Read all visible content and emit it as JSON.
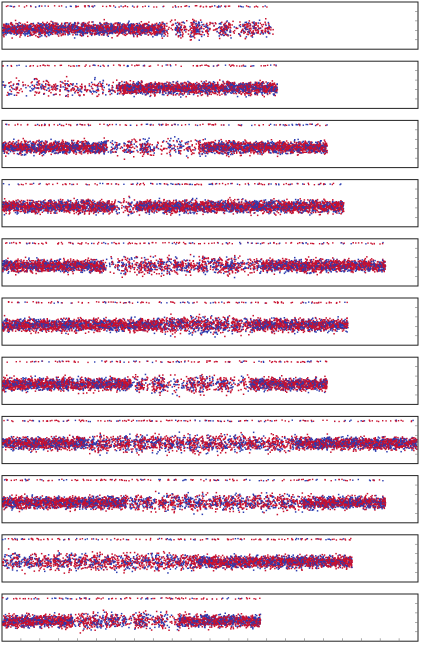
{
  "figure": {
    "background": "#ffffff",
    "frame_color": "#222222",
    "tick_color": "#777777"
  },
  "chart_data": [
    {
      "type": "scatter",
      "panel": 1,
      "extent_fraction": 0.65,
      "profile": [
        1,
        1,
        1,
        1,
        1,
        1,
        1,
        1,
        1,
        1,
        1,
        1,
        1,
        1,
        1,
        1,
        1,
        1,
        1,
        1,
        1,
        1,
        1,
        1,
        1,
        1,
        1,
        1,
        1,
        1,
        1,
        1,
        1,
        1,
        1,
        1,
        1,
        1,
        1,
        0.2,
        0.1,
        0.3,
        0.6,
        0.3,
        0.1,
        0.7,
        0.8,
        0.5,
        0.2,
        0.3,
        0.1,
        0.2,
        0.6,
        0.8,
        0.4,
        0.1,
        0.1,
        0.3,
        0.5,
        0.4,
        0.6,
        0.3,
        0.2,
        0.5,
        0.2
      ],
      "colors": [
        "#c8102e",
        "#2a3bb0"
      ],
      "series": []
    },
    {
      "type": "scatter",
      "panel": 2,
      "extent_fraction": 0.66,
      "profile": [
        0.1,
        0.2,
        0.15,
        0.3,
        0.1,
        0.05,
        0.1,
        0.2,
        0.35,
        0.3,
        0.2,
        0.25,
        0.3,
        0.2,
        0.1,
        0.4,
        0.2,
        0.15,
        0.3,
        0.2,
        0.1,
        0.2,
        0.3,
        0.2,
        0.2,
        0.15,
        0.2,
        0.3,
        1,
        1,
        1,
        1,
        1,
        1,
        1,
        1,
        1,
        1,
        1,
        1,
        1,
        1,
        1,
        1,
        1,
        1,
        1,
        1,
        1,
        1,
        1,
        1,
        1,
        1,
        1,
        1,
        1,
        1,
        1,
        1,
        1,
        1,
        1,
        1,
        1,
        1
      ],
      "colors": [
        "#c8102e",
        "#2a3bb0"
      ],
      "series": []
    },
    {
      "type": "scatter",
      "panel": 3,
      "extent_fraction": 0.78,
      "profile": [
        1,
        1,
        1,
        1,
        1,
        1,
        1,
        1,
        1,
        1,
        1,
        1,
        1,
        1,
        1,
        1,
        1,
        1,
        1,
        1,
        1,
        1,
        1,
        1,
        1,
        0.1,
        0.2,
        0.3,
        0.1,
        0.3,
        0.5,
        0.2,
        0.1,
        0.6,
        0.7,
        0.3,
        0.2,
        0.1,
        0.2,
        0.1,
        0.3,
        0.2,
        0.4,
        0.1,
        0.3,
        0.2,
        0.1,
        0.6,
        0.8,
        1,
        1,
        1,
        1,
        1,
        1,
        1,
        1,
        1,
        1,
        1,
        1,
        1,
        1,
        1,
        1,
        1,
        1,
        1,
        1,
        1,
        1,
        1,
        1,
        1,
        1,
        1,
        1,
        1
      ],
      "colors": [
        "#c8102e",
        "#2a3bb0"
      ],
      "series": []
    },
    {
      "type": "scatter",
      "panel": 4,
      "extent_fraction": 0.82,
      "profile": [
        1,
        1,
        1,
        1,
        1,
        1,
        1,
        1,
        1,
        1,
        1,
        1,
        1,
        1,
        1,
        1,
        1,
        1,
        1,
        1,
        0.8,
        1,
        1,
        1,
        1,
        1,
        1,
        0.2,
        0.1,
        0.3,
        0.5,
        0.2,
        1,
        1,
        1,
        1,
        1,
        1,
        1,
        1,
        1,
        1,
        1,
        1,
        1,
        0.8,
        1,
        1,
        1,
        1,
        1,
        1,
        1,
        1,
        1,
        1,
        1,
        1,
        1,
        1,
        1,
        1,
        1,
        1,
        1,
        1,
        1,
        1,
        1,
        1,
        1,
        1,
        1,
        1,
        1,
        1,
        1,
        1,
        1,
        1,
        1,
        1
      ],
      "colors": [
        "#c8102e",
        "#2a3bb0"
      ],
      "series": []
    },
    {
      "type": "scatter",
      "panel": 5,
      "extent_fraction": 0.92,
      "profile": [
        1,
        1,
        1,
        1,
        1,
        1,
        1,
        1,
        1,
        1,
        1,
        1,
        1,
        1,
        1,
        1,
        1,
        1,
        1,
        1,
        1,
        1,
        1,
        1,
        0.1,
        0.2,
        0.1,
        0.3,
        0.5,
        0.4,
        0.2,
        0.3,
        0.6,
        0.5,
        0.7,
        0.4,
        0.3,
        0.6,
        0.4,
        0.3,
        0.6,
        0.5,
        0.4,
        0.6,
        0.4,
        0.3,
        0.5,
        0.6,
        0.3,
        0.4,
        0.6,
        0.5,
        0.7,
        0.8,
        0.6,
        0.4,
        0.3,
        0.2,
        0.3,
        0.5,
        0.4,
        1,
        1,
        1,
        1,
        1,
        1,
        1,
        1,
        1,
        1,
        1,
        1,
        1,
        1,
        1,
        1,
        1,
        1,
        1,
        1,
        1,
        1,
        1,
        1,
        1,
        1,
        1,
        1,
        1
      ],
      "colors": [
        "#c8102e",
        "#2a3bb0"
      ],
      "series": []
    },
    {
      "type": "scatter",
      "panel": 6,
      "extent_fraction": 0.83,
      "profile": [
        1,
        1,
        1,
        1,
        1,
        1,
        1,
        1,
        1,
        1,
        1,
        1,
        1,
        1,
        1,
        1,
        1,
        1,
        1,
        1,
        1,
        1,
        1,
        1,
        1,
        1,
        1,
        1,
        1,
        1,
        1,
        1,
        1,
        1,
        1,
        1,
        1,
        0.7,
        0.6,
        0.8,
        0.5,
        0.9,
        0.7,
        0.6,
        0.8,
        0.7,
        0.6,
        0.9,
        0.7,
        0.5,
        0.8,
        0.6,
        0.7,
        0.4,
        0.8,
        0.6,
        0.3,
        0.5,
        0.7,
        1,
        1,
        1,
        1,
        1,
        1,
        1,
        1,
        1,
        1,
        1,
        1,
        1,
        1,
        1,
        1,
        1,
        1,
        1,
        1,
        1,
        1
      ],
      "colors": [
        "#c8102e",
        "#2a3bb0"
      ],
      "series": []
    },
    {
      "type": "scatter",
      "panel": 7,
      "extent_fraction": 0.78,
      "profile": [
        1,
        1,
        1,
        1,
        1,
        1,
        1,
        1,
        1,
        1,
        1,
        1,
        1,
        1,
        1,
        1,
        1,
        1,
        1,
        1,
        1,
        1,
        1,
        1,
        1,
        1,
        1,
        1,
        1,
        1,
        0.2,
        0.5,
        0.6,
        0.3,
        0.1,
        0.5,
        0.7,
        0.6,
        0.2,
        0.1,
        0.3,
        0.1,
        0.2,
        0.5,
        0.6,
        0.4,
        0.7,
        0.5,
        0.3,
        0.2,
        0.4,
        0.6,
        0.5,
        0.3,
        0.1,
        0.2,
        0.3,
        0.2,
        1,
        1,
        1,
        1,
        1,
        1,
        1,
        1,
        1,
        1,
        1,
        1,
        1,
        1,
        1,
        1,
        1,
        1
      ],
      "colors": [
        "#c8102e",
        "#2a3bb0"
      ],
      "series": []
    },
    {
      "type": "scatter",
      "panel": 8,
      "extent_fraction": 0.995,
      "profile": [
        1,
        1,
        1,
        1,
        1,
        1,
        1,
        1,
        1,
        1,
        1,
        1,
        1,
        1,
        1,
        1,
        1,
        1,
        1,
        1,
        0.4,
        0.7,
        0.3,
        0.8,
        0.6,
        0.5,
        0.3,
        0.4,
        0.6,
        0.7,
        0.5,
        0.3,
        0.6,
        0.8,
        0.5,
        0.4,
        0.7,
        0.6,
        0.3,
        0.5,
        0.7,
        0.4,
        0.6,
        0.5,
        0.3,
        0.7,
        0.6,
        0.4,
        0.5,
        0.8,
        0.6,
        0.4,
        0.6,
        0.5,
        0.3,
        0.4,
        0.5,
        0.7,
        0.4,
        0.6,
        0.5,
        0.6,
        0.3,
        0.4,
        0.5,
        0.6,
        0.5,
        0.4,
        0.3,
        0.5,
        0.6,
        1,
        1,
        1,
        1,
        1,
        1,
        1,
        1,
        1,
        1,
        1,
        1,
        1,
        1,
        1,
        1,
        1,
        1,
        1,
        1,
        1,
        1,
        1,
        1,
        1,
        1,
        1,
        1,
        1
      ],
      "colors": [
        "#c8102e",
        "#2a3bb0"
      ],
      "series": []
    },
    {
      "type": "scatter",
      "panel": 9,
      "extent_fraction": 0.92,
      "profile": [
        1,
        1,
        1,
        1,
        1,
        1,
        1,
        1,
        1,
        1,
        1,
        1,
        1,
        1,
        1,
        1,
        1,
        1,
        1,
        1,
        1,
        1,
        1,
        1,
        1,
        1,
        1,
        1,
        1,
        1,
        0.2,
        0.4,
        0.6,
        0.3,
        0.5,
        0.7,
        0.4,
        0.2,
        0.6,
        0.5,
        0.3,
        0.6,
        0.4,
        0.3,
        0.5,
        0.7,
        0.4,
        0.6,
        0.5,
        0.3,
        0.4,
        0.6,
        0.5,
        0.4,
        0.7,
        0.5,
        0.4,
        0.6,
        0.3,
        0.5,
        0.4,
        0.6,
        0.5,
        0.4,
        0.6,
        0.4,
        0.3,
        0.5,
        0.6,
        0.4,
        0.5,
        0.3,
        0.4,
        1,
        1,
        1,
        1,
        1,
        1,
        1,
        1,
        1,
        1,
        1,
        1,
        1,
        1,
        1,
        1,
        1,
        1,
        1,
        1
      ],
      "colors": [
        "#c8102e",
        "#2a3bb0"
      ],
      "series": []
    },
    {
      "type": "scatter",
      "panel": 10,
      "extent_fraction": 0.84,
      "profile": [
        0.4,
        0.3,
        0.5,
        0.6,
        0.2,
        0.4,
        0.5,
        0.3,
        0.6,
        0.4,
        0.5,
        0.3,
        0.6,
        0.5,
        0.4,
        0.6,
        0.3,
        0.5,
        0.6,
        0.4,
        0.3,
        0.5,
        0.6,
        0.4,
        0.5,
        0.6,
        0.4,
        0.3,
        0.5,
        0.6,
        0.4,
        0.5,
        0.3,
        0.6,
        0.5,
        0.4,
        0.6,
        0.5,
        0.3,
        0.6,
        0.4,
        0.5,
        0.6,
        0.4,
        0.5,
        0.6,
        1,
        1,
        1,
        1,
        1,
        1,
        1,
        1,
        1,
        1,
        1,
        1,
        1,
        1,
        1,
        1,
        1,
        1,
        1,
        1,
        1,
        1,
        1,
        1,
        1,
        1,
        1,
        1,
        1,
        1,
        1,
        1,
        1,
        1,
        1,
        1,
        1
      ],
      "colors": [
        "#c8102e",
        "#2a3bb0"
      ],
      "series": []
    },
    {
      "type": "scatter",
      "panel": 11,
      "extent_fraction": 0.62,
      "profile": [
        1,
        1,
        1,
        1,
        1,
        1,
        1,
        1,
        1,
        1,
        1,
        1,
        1,
        1,
        1,
        1,
        1,
        0.2,
        0.3,
        0.5,
        0.6,
        0.4,
        0.8,
        0.5,
        0.3,
        0.6,
        0.7,
        0.5,
        0.3,
        0.4,
        0.2,
        0.1,
        0.5,
        0.7,
        0.6,
        0.3,
        0.2,
        0.4,
        0.6,
        0.3,
        0.2,
        0.1,
        0.3,
        1,
        1,
        1,
        1,
        1,
        1,
        1,
        1,
        1,
        1,
        1,
        1,
        1,
        1,
        1,
        1,
        1,
        1,
        1,
        1
      ],
      "colors": [
        "#c8102e",
        "#2a3bb0"
      ],
      "series": []
    }
  ]
}
